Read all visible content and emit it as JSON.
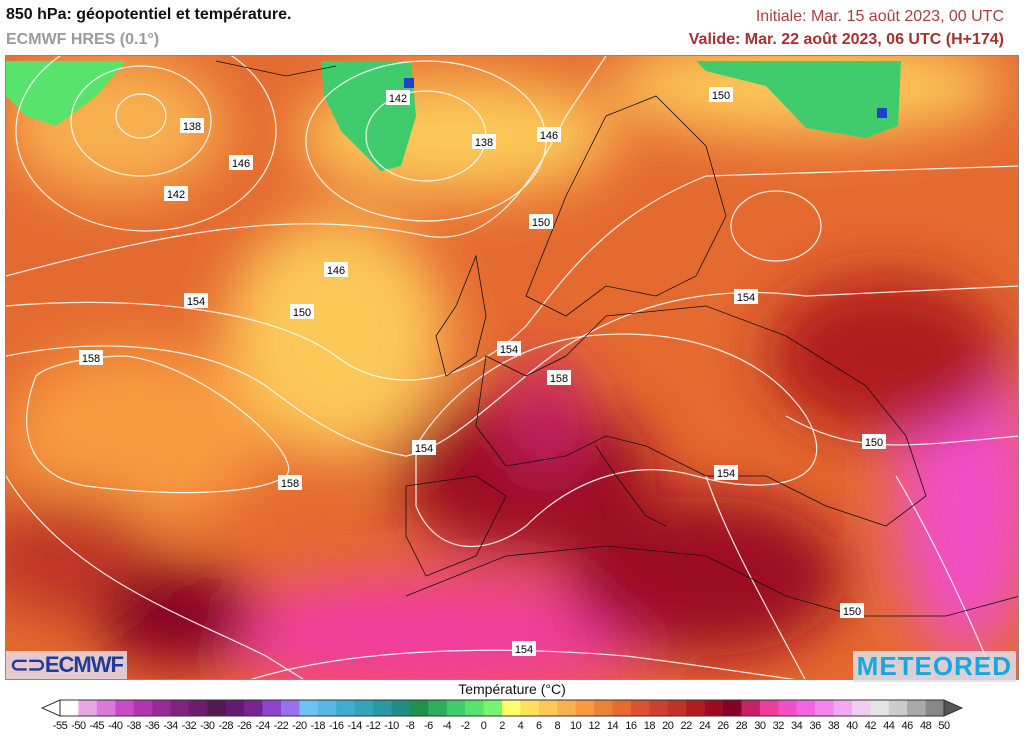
{
  "header": {
    "title": "850 hPa: géopotentiel et température.",
    "model": "ECMWF HRES (0.1°)",
    "initial": "Initiale: Mar. 15 août 2023, 00 UTC",
    "valid": "Valide: Mar. 22 août 2023, 06 UTC (H+174)"
  },
  "map": {
    "contour_labels": [
      "138",
      "142",
      "146",
      "142",
      "138",
      "146",
      "150",
      "150",
      "146",
      "154",
      "150",
      "158",
      "154",
      "154",
      "158",
      "154",
      "158",
      "154",
      "150",
      "154",
      "150",
      "150",
      "154"
    ]
  },
  "logos": {
    "left": "ECMWF",
    "right": "METEORED"
  },
  "colorbar": {
    "title": "Température (°C)",
    "ticks": [
      "-55",
      "-50",
      "-45",
      "-40",
      "-38",
      "-36",
      "-34",
      "-32",
      "-30",
      "-28",
      "-26",
      "-24",
      "-22",
      "-20",
      "-18",
      "-16",
      "-14",
      "-12",
      "-10",
      "-8",
      "-6",
      "-4",
      "-2",
      "0",
      "2",
      "4",
      "6",
      "8",
      "10",
      "12",
      "14",
      "16",
      "18",
      "20",
      "22",
      "24",
      "26",
      "28",
      "30",
      "32",
      "34",
      "36",
      "38",
      "40",
      "42",
      "44",
      "46",
      "48",
      "50"
    ],
    "colors": [
      "#ffffff",
      "#e6a8e4",
      "#d97ad8",
      "#c84cc8",
      "#b234b2",
      "#982a98",
      "#7e2480",
      "#6a1e6c",
      "#521850",
      "#621a72",
      "#7a2494",
      "#8e44cc",
      "#9870ec",
      "#70c0f4",
      "#58b6e6",
      "#40acd0",
      "#30a4b8",
      "#2a9aa0",
      "#208c84",
      "#20904c",
      "#2cae5c",
      "#40cc6c",
      "#58e46c",
      "#78f46c",
      "#ffff6c",
      "#ffe05c",
      "#fcc858",
      "#f8b050",
      "#f89a40",
      "#e88238",
      "#e46a30",
      "#dc5230",
      "#cc4030",
      "#c03428",
      "#b01c1c",
      "#9c0c20",
      "#840024",
      "#c42264",
      "#f03c9c",
      "#f050c4",
      "#f264e4",
      "#f284ec",
      "#f0a8f0",
      "#f0ccf0",
      "#e4e4e4",
      "#cccccc",
      "#a8a8a8",
      "#888888",
      "#555555"
    ]
  }
}
